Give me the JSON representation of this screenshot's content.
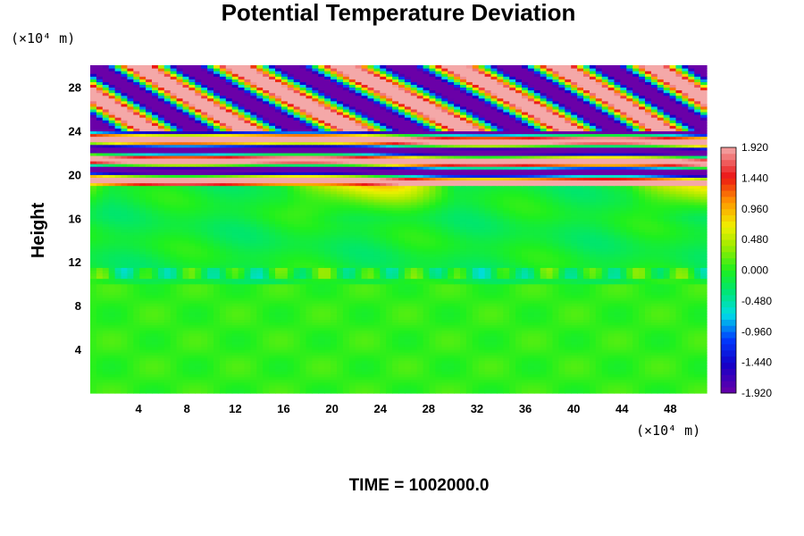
{
  "chart_data": {
    "type": "heatmap",
    "title": "Potential Temperature Deviation",
    "ylabel": "Height",
    "xlabel": "",
    "x_unit_label": "(×10⁴ m)",
    "y_unit_label": "(×10⁴ m)",
    "time_label": "TIME = 1002000.0",
    "xlim": [
      0,
      51
    ],
    "ylim": [
      0,
      30
    ],
    "x_ticks": [
      4,
      8,
      12,
      16,
      20,
      24,
      28,
      32,
      36,
      40,
      44,
      48
    ],
    "y_ticks": [
      4,
      8,
      12,
      16,
      20,
      24,
      28
    ],
    "colorbar": {
      "min": -1.92,
      "max": 1.92,
      "tick_values": [
        1.92,
        1.44,
        0.96,
        0.48,
        0.0,
        -0.48,
        -0.96,
        -1.44,
        -1.92
      ],
      "tick_labels": [
        "1.920",
        "1.440",
        "0.960",
        "0.480",
        "0.000",
        "-0.480",
        "-0.960",
        "-1.440",
        "-1.920"
      ],
      "colormap": "rainbow"
    },
    "grid": false,
    "field_summary": [
      {
        "height_range": [
          0,
          10
        ],
        "level": 0.05
      },
      {
        "height_range": [
          10,
          19
        ],
        "level": -0.1
      },
      {
        "height_range": [
          19,
          24
        ],
        "level": "alternating +1.92 / -1.92 bands"
      },
      {
        "height_range": [
          24,
          30
        ],
        "level": "tilted wave crests, +1.92 / -1.92"
      }
    ]
  },
  "colors": {
    "min": "#6a00a8",
    "max": "#f4a8a8",
    "zero": "#1ef01e"
  }
}
